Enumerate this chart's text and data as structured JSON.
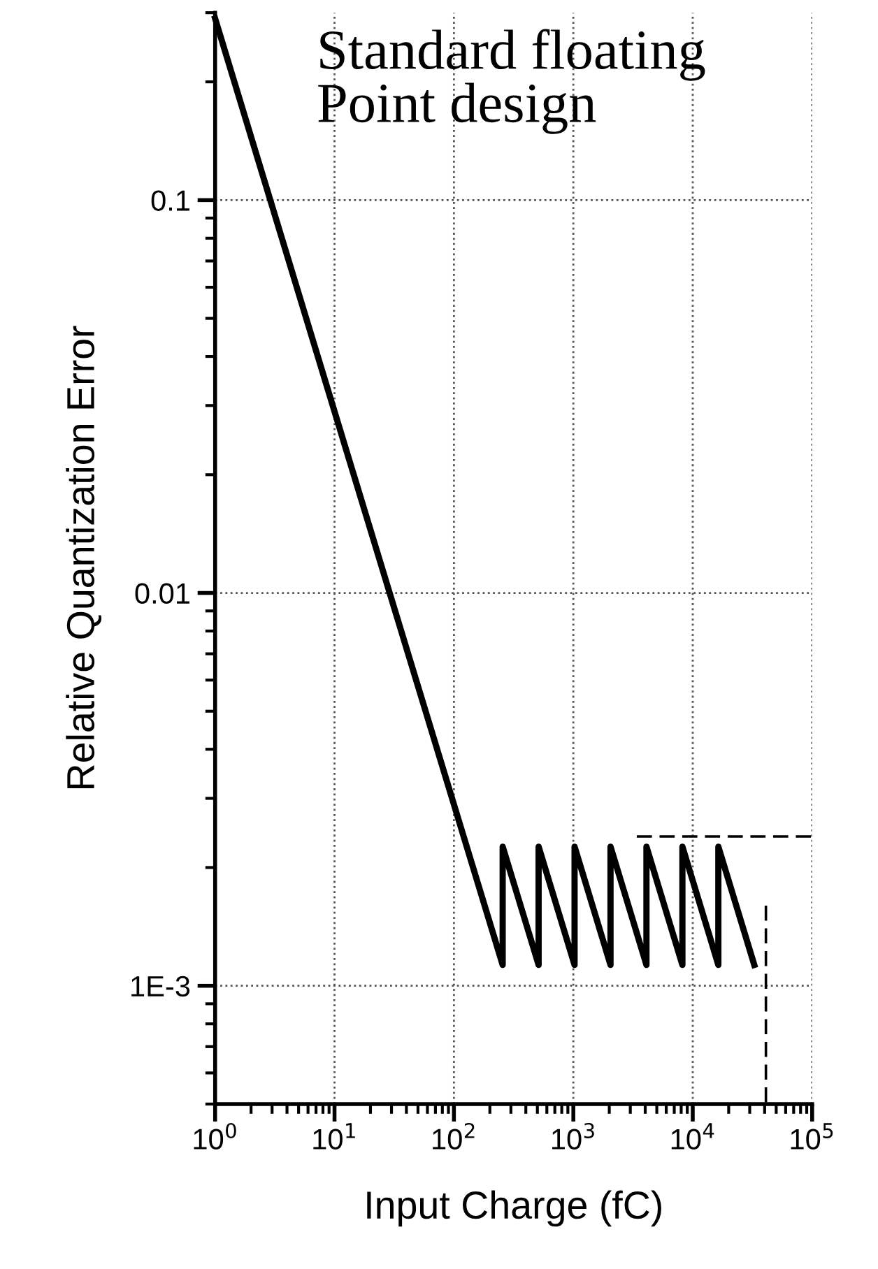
{
  "chart_data": {
    "type": "line",
    "xlabel": "Input Charge (fC)",
    "ylabel": "Relative Quantization Error",
    "annotations": [
      "Standard floating\nPoint design"
    ],
    "log": "xy",
    "grid": true,
    "marker": "none",
    "xlim": [
      1,
      100000
    ],
    "ylim": [
      0.0005,
      0.3
    ],
    "xticks": [
      {
        "value": 1,
        "label": "10$^{0}$"
      },
      {
        "value": 10,
        "label": "10$^{1}$"
      },
      {
        "value": 100,
        "label": "10$^{2}$"
      },
      {
        "value": 1000,
        "label": "10$^{3}$"
      },
      {
        "value": 10000,
        "label": "10$^{4}$"
      },
      {
        "value": 100000,
        "label": "10$^{5}$"
      }
    ],
    "yticks": [
      {
        "value": 0.001,
        "label": "1E-3"
      },
      0.01,
      0.1
    ],
    "series": [
      {
        "color": "#000000",
        "line_style": "solid",
        "x": [
          1,
          256,
          256,
          512,
          512,
          1024,
          1024,
          2048,
          2048,
          4096,
          4096,
          8192,
          8192,
          16384,
          16384,
          32768
        ],
        "values": [
          0.29,
          0.00113,
          0.00226,
          0.00113,
          0.00226,
          0.00113,
          0.00226,
          0.00113,
          0.00226,
          0.00113,
          0.00226,
          0.00113,
          0.00226,
          0.00113,
          0.00226,
          0.00113
        ]
      },
      {
        "color": "#000000",
        "line_style": "dashed",
        "x": [
          3400,
          100000
        ],
        "values": [
          0.0024,
          0.0024
        ]
      },
      {
        "color": "#000000",
        "line_style": "dashed",
        "x": [
          41000,
          41000
        ],
        "values": [
          0.0016,
          0.0005
        ]
      }
    ]
  }
}
